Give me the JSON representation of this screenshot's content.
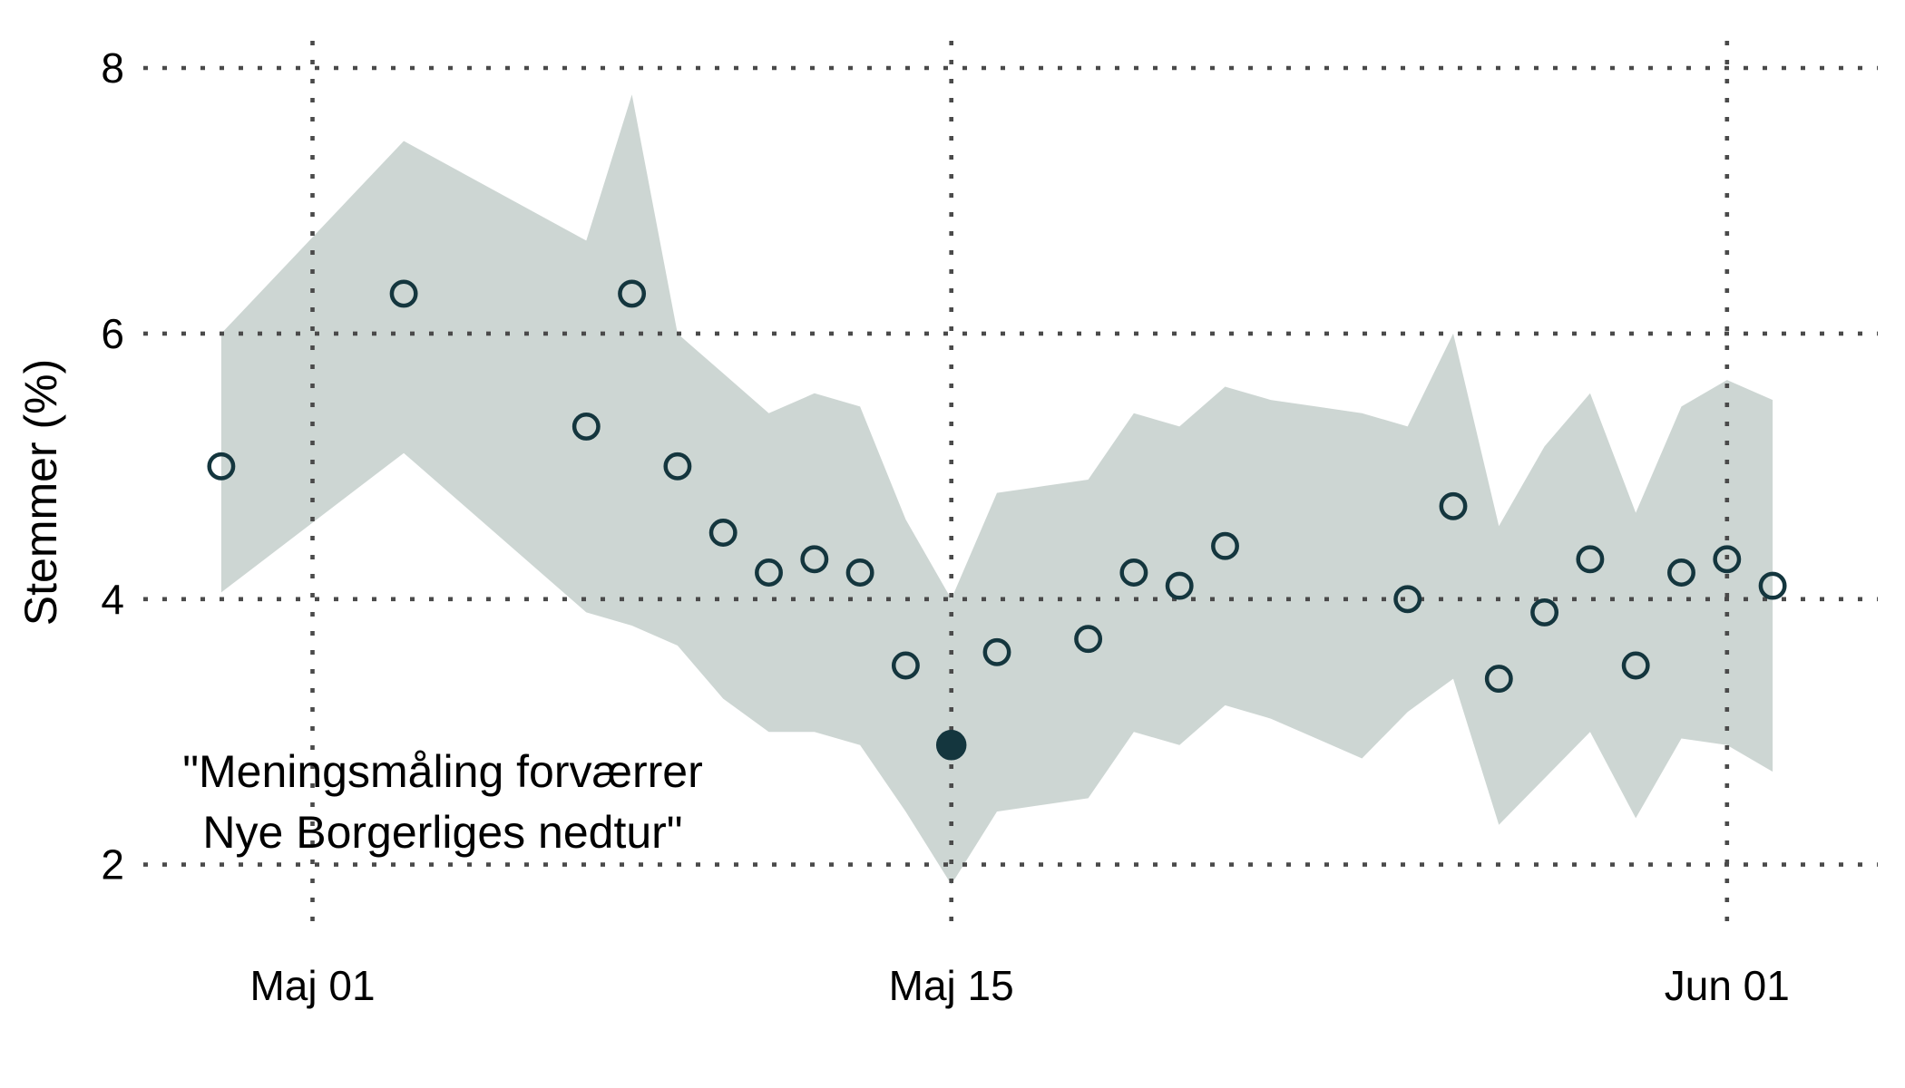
{
  "chart_data": {
    "type": "scatter",
    "title": "",
    "xlabel": "",
    "ylabel": "Stemmer (%)",
    "x_unit": "days since Maj 01",
    "xlim": [
      -3.7,
      34.3
    ],
    "ylim": [
      1.55,
      8.2
    ],
    "grid": "dotted",
    "legend_position": "none",
    "y_ticks": [
      {
        "value": 8,
        "label": "8"
      },
      {
        "value": 6,
        "label": "6"
      },
      {
        "value": 4,
        "label": "4"
      },
      {
        "value": 2,
        "label": "2"
      }
    ],
    "x_ticks": [
      {
        "d": 0,
        "label": "Maj 01"
      },
      {
        "d": 14,
        "label": "Maj 15"
      },
      {
        "d": 31,
        "label": "Jun 01"
      }
    ],
    "annotation": {
      "line1": "\"Meningsmåling forværrer",
      "line2": "Nye Borgerliges nedtur\""
    },
    "points": [
      {
        "date": "Apr 29",
        "d": -2,
        "value": 5.0,
        "highlighted": false
      },
      {
        "date": "Maj 03",
        "d": 2,
        "value": 6.3,
        "highlighted": false
      },
      {
        "date": "Maj 07",
        "d": 6,
        "value": 5.3,
        "highlighted": false
      },
      {
        "date": "Maj 08",
        "d": 7,
        "value": 6.3,
        "highlighted": false
      },
      {
        "date": "Maj 09",
        "d": 8,
        "value": 5.0,
        "highlighted": false
      },
      {
        "date": "Maj 10",
        "d": 9,
        "value": 4.5,
        "highlighted": false
      },
      {
        "date": "Maj 11",
        "d": 10,
        "value": 4.2,
        "highlighted": false
      },
      {
        "date": "Maj 12",
        "d": 11,
        "value": 4.3,
        "highlighted": false
      },
      {
        "date": "Maj 13",
        "d": 12,
        "value": 4.2,
        "highlighted": false
      },
      {
        "date": "Maj 14",
        "d": 13,
        "value": 3.5,
        "highlighted": false
      },
      {
        "date": "Maj 15",
        "d": 14,
        "value": 2.9,
        "highlighted": true
      },
      {
        "date": "Maj 16",
        "d": 15,
        "value": 3.6,
        "highlighted": false
      },
      {
        "date": "Maj 18",
        "d": 17,
        "value": 3.7,
        "highlighted": false
      },
      {
        "date": "Maj 19",
        "d": 18,
        "value": 4.2,
        "highlighted": false
      },
      {
        "date": "Maj 20",
        "d": 19,
        "value": 4.1,
        "highlighted": false
      },
      {
        "date": "Maj 21",
        "d": 20,
        "value": 4.4,
        "highlighted": false
      },
      {
        "date": "Maj 25",
        "d": 24,
        "value": 4.0,
        "highlighted": false
      },
      {
        "date": "Maj 26",
        "d": 25,
        "value": 4.7,
        "highlighted": false
      },
      {
        "date": "Maj 27",
        "d": 26,
        "value": 3.4,
        "highlighted": false
      },
      {
        "date": "Maj 28",
        "d": 27,
        "value": 3.9,
        "highlighted": false
      },
      {
        "date": "Maj 29",
        "d": 28,
        "value": 4.3,
        "highlighted": false
      },
      {
        "date": "Maj 30",
        "d": 29,
        "value": 3.5,
        "highlighted": false
      },
      {
        "date": "Maj 31",
        "d": 30,
        "value": 4.2,
        "highlighted": false
      },
      {
        "date": "Jun 01",
        "d": 31,
        "value": 4.3,
        "highlighted": false
      },
      {
        "date": "Jun 02",
        "d": 32,
        "value": 4.1,
        "highlighted": false
      }
    ],
    "band": [
      {
        "d": -2,
        "lo": 4.05,
        "hi": 6.0
      },
      {
        "d": 2,
        "lo": 5.1,
        "hi": 7.45
      },
      {
        "d": 6,
        "lo": 3.9,
        "hi": 6.7
      },
      {
        "d": 7,
        "lo": 3.8,
        "hi": 7.8
      },
      {
        "d": 8,
        "lo": 3.65,
        "hi": 6.0
      },
      {
        "d": 9,
        "lo": 3.25,
        "hi": 5.7
      },
      {
        "d": 10,
        "lo": 3.0,
        "hi": 5.4
      },
      {
        "d": 11,
        "lo": 3.0,
        "hi": 5.55
      },
      {
        "d": 12,
        "lo": 2.9,
        "hi": 5.45
      },
      {
        "d": 13,
        "lo": 2.4,
        "hi": 4.6
      },
      {
        "d": 14,
        "lo": 1.85,
        "hi": 4.0
      },
      {
        "d": 15,
        "lo": 2.4,
        "hi": 4.8
      },
      {
        "d": 16,
        "lo": 2.45,
        "hi": 4.85
      },
      {
        "d": 17,
        "lo": 2.5,
        "hi": 4.9
      },
      {
        "d": 18,
        "lo": 3.0,
        "hi": 5.4
      },
      {
        "d": 19,
        "lo": 2.9,
        "hi": 5.3
      },
      {
        "d": 20,
        "lo": 3.2,
        "hi": 5.6
      },
      {
        "d": 21,
        "lo": 3.1,
        "hi": 5.5
      },
      {
        "d": 22,
        "lo": 2.95,
        "hi": 5.45
      },
      {
        "d": 23,
        "lo": 2.8,
        "hi": 5.4
      },
      {
        "d": 24,
        "lo": 3.15,
        "hi": 5.3
      },
      {
        "d": 25,
        "lo": 3.4,
        "hi": 6.0
      },
      {
        "d": 26,
        "lo": 2.3,
        "hi": 4.55
      },
      {
        "d": 27,
        "lo": 2.65,
        "hi": 5.15
      },
      {
        "d": 28,
        "lo": 3.0,
        "hi": 5.55
      },
      {
        "d": 29,
        "lo": 2.35,
        "hi": 4.65
      },
      {
        "d": 30,
        "lo": 2.95,
        "hi": 5.45
      },
      {
        "d": 31,
        "lo": 2.9,
        "hi": 5.65
      },
      {
        "d": 32,
        "lo": 2.7,
        "hi": 5.5
      }
    ],
    "colors": {
      "band": "#cdd6d3",
      "marker": "#14363e",
      "grid": "#4a4a4a",
      "text": "#000000",
      "background": "#ffffff"
    }
  }
}
